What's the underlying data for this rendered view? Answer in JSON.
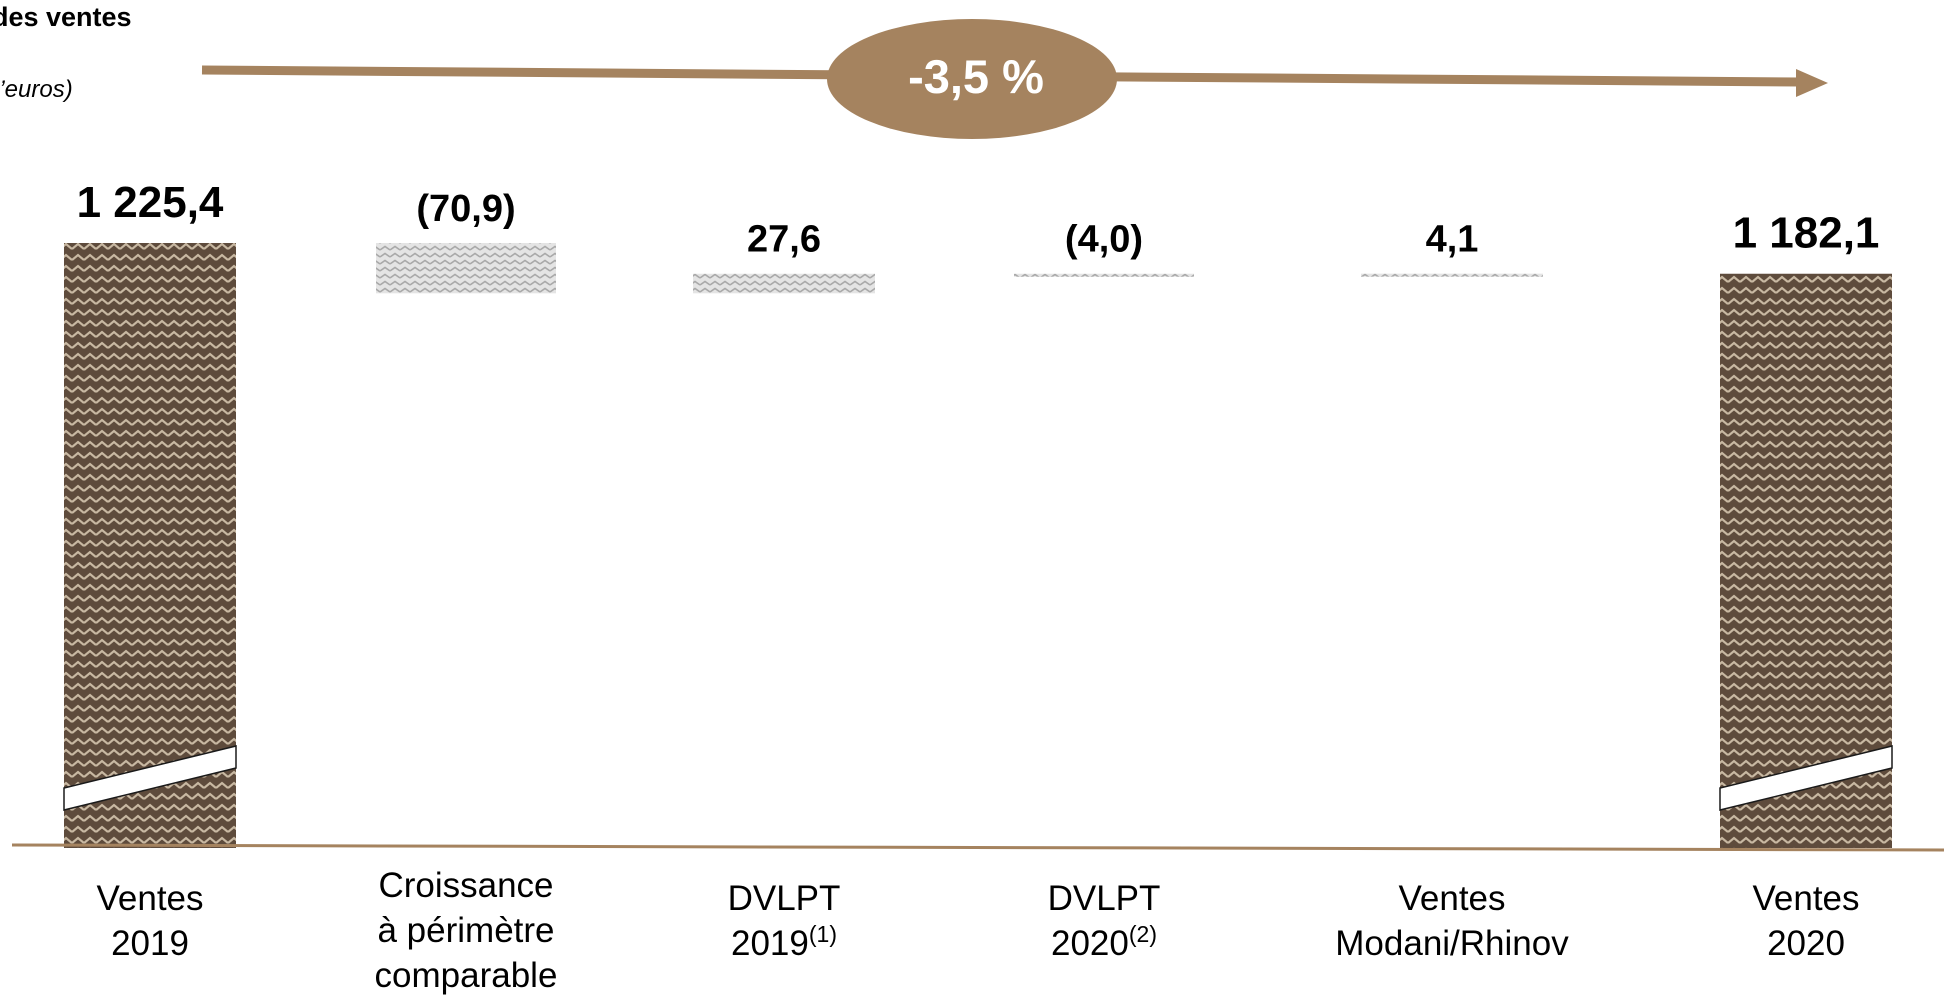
{
  "header": {
    "title": "des ventes",
    "unit": "l’euros)"
  },
  "growth_badge": "-3,5 %",
  "colors": {
    "accent": "#A5835F",
    "total_bar_dark": "#5E4B3C",
    "total_bar_light": "#C8B8A2",
    "step_bar_dark": "#A9A9A9",
    "step_bar_light": "#E4E4E4"
  },
  "chart_data": {
    "type": "bar",
    "subtype": "waterfall",
    "axis_break_on_totals": true,
    "grid": false,
    "categories": [
      {
        "lines": [
          "Ventes",
          "2019"
        ],
        "sup": ""
      },
      {
        "lines": [
          "Croissance",
          "à périmètre",
          "comparable"
        ],
        "sup": ""
      },
      {
        "lines": [
          "DVLPT",
          "2019"
        ],
        "sup": "(1)"
      },
      {
        "lines": [
          "DVLPT",
          "2020"
        ],
        "sup": "(2)"
      },
      {
        "lines": [
          "Ventes",
          "Modani/Rhinov"
        ],
        "sup": ""
      },
      {
        "lines": [
          "Ventes",
          "2020"
        ],
        "sup": ""
      }
    ],
    "values": [
      1225.4,
      -70.9,
      27.6,
      -4.0,
      4.1,
      1182.1
    ],
    "kinds": [
      "total",
      "delta",
      "delta",
      "delta",
      "delta",
      "total"
    ],
    "data_labels": [
      "1 225,4",
      "(70,9)",
      "27,6",
      "(4,0)",
      "4,1",
      "1 182,1"
    ]
  }
}
